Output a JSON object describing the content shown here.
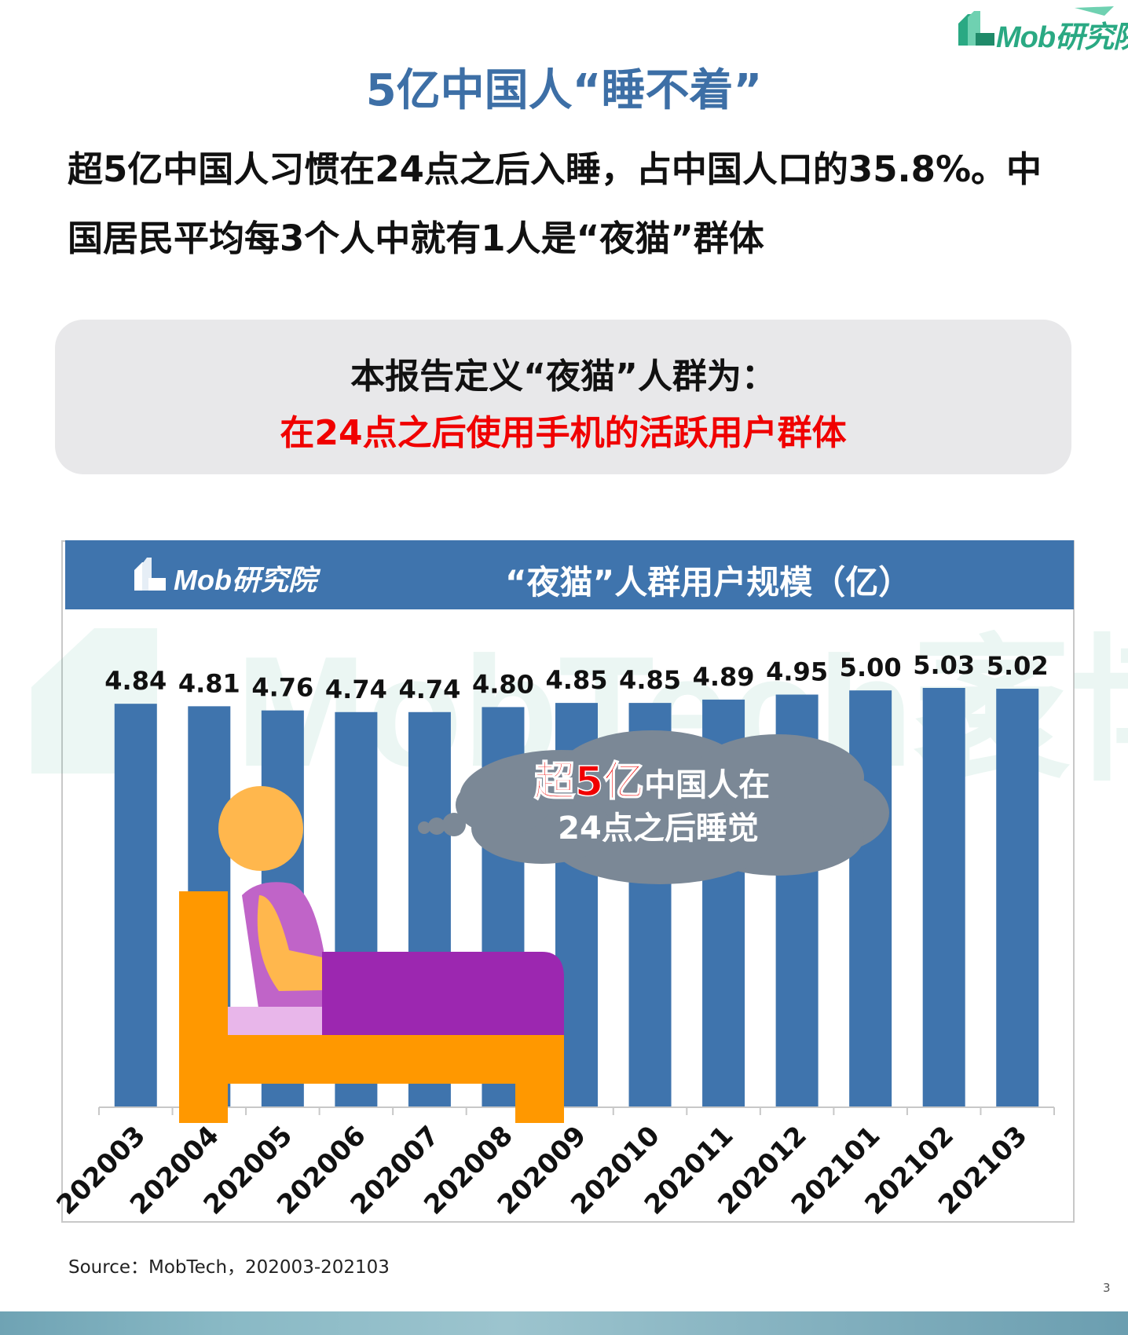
{
  "brand": {
    "logo_text": "Mob研究院"
  },
  "page": {
    "title": "5亿中国人“睡不着”",
    "intro_line1": "超5亿中国人习惯在24点之后入睡，占中国人口的35.8%。中",
    "intro_line2": "国居民平均每3个人中就有1人是“夜猫”群体"
  },
  "definition": {
    "heading": "本报告定义“夜猫”人群为：",
    "text": "在24点之后使用手机的活跃用户群体"
  },
  "chart_header": {
    "logo_text": "Mob研究院",
    "title": "“夜猫”人群用户规模（亿）"
  },
  "watermark": {
    "text": "MobTech袤博"
  },
  "callout": {
    "highlight": "超5亿",
    "text_rest": "中国人在",
    "line2": "24点之后睡觉"
  },
  "colors": {
    "bar": "#3f74ad",
    "header": "#3f74ad",
    "title": "#3d6fa6",
    "accent_red": "#f00000",
    "brand_green": "#2aa983",
    "cloud": "#7b8896"
  },
  "chart_data": {
    "type": "bar",
    "title": "“夜猫”人群用户规模（亿）",
    "categories": [
      "202003",
      "202004",
      "202005",
      "202006",
      "202007",
      "202008",
      "202009",
      "202010",
      "202011",
      "202012",
      "202101",
      "202102",
      "202103"
    ],
    "values": [
      4.84,
      4.81,
      4.76,
      4.74,
      4.74,
      4.8,
      4.85,
      4.85,
      4.89,
      4.95,
      5.0,
      5.03,
      5.02
    ],
    "value_labels": [
      "4.84",
      "4.81",
      "4.76",
      "4.74",
      "4.74",
      "4.80",
      "4.85",
      "4.85",
      "4.89",
      "4.95",
      "5.00",
      "5.03",
      "5.02"
    ],
    "grid": false,
    "legend": "none"
  },
  "source": "Source：MobTech，202003-202103",
  "page_number": "3"
}
